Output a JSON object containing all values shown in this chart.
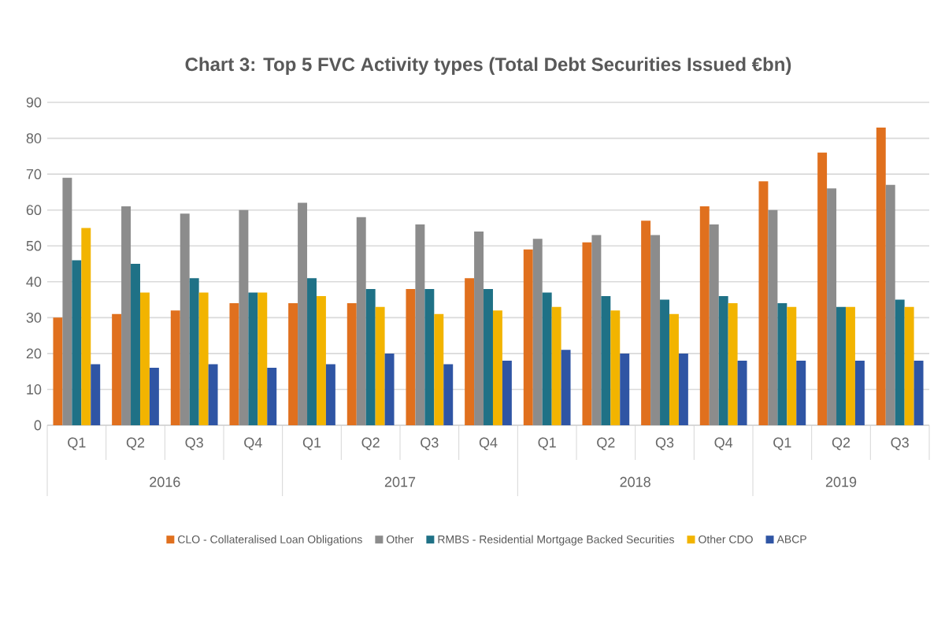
{
  "chart_data": {
    "type": "bar",
    "title": "Chart 3: Top 5 FVC Activity types (Total Debt Securities Issued €bn)",
    "categories": [
      "Q1",
      "Q2",
      "Q3",
      "Q4",
      "Q1",
      "Q2",
      "Q3",
      "Q4",
      "Q1",
      "Q2",
      "Q3",
      "Q4",
      "Q1",
      "Q2",
      "Q3"
    ],
    "annotations": [
      "2016",
      "2017",
      "2018",
      "2019"
    ],
    "series": [
      {
        "name": "CLO - Collateralised Loan Obligations",
        "color": "#e0701e",
        "values": [
          30,
          31,
          32,
          34,
          34,
          34,
          38,
          41,
          49,
          51,
          57,
          61,
          68,
          76,
          83
        ]
      },
      {
        "name": "Other",
        "color": "#8c8c8c",
        "values": [
          69,
          61,
          59,
          60,
          62,
          58,
          56,
          54,
          52,
          53,
          53,
          56,
          60,
          66,
          67
        ]
      },
      {
        "name": "RMBS - Residential Mortgage Backed Securities",
        "color": "#1f7186",
        "values": [
          46,
          45,
          41,
          37,
          41,
          38,
          38,
          38,
          37,
          36,
          35,
          36,
          34,
          33,
          35
        ]
      },
      {
        "name": "Other CDO",
        "color": "#f2b400",
        "values": [
          55,
          37,
          37,
          37,
          36,
          33,
          31,
          32,
          33,
          32,
          31,
          34,
          33,
          33,
          33
        ]
      },
      {
        "name": "ABCP",
        "color": "#2f55a4",
        "values": [
          17,
          16,
          17,
          16,
          17,
          20,
          17,
          18,
          21,
          20,
          20,
          18,
          18,
          18,
          18
        ]
      }
    ],
    "ylim": [
      0,
      90
    ],
    "yticks": [
      0,
      10,
      20,
      30,
      40,
      50,
      60,
      70,
      80,
      90
    ],
    "grid": "y",
    "legend": "bottom"
  }
}
